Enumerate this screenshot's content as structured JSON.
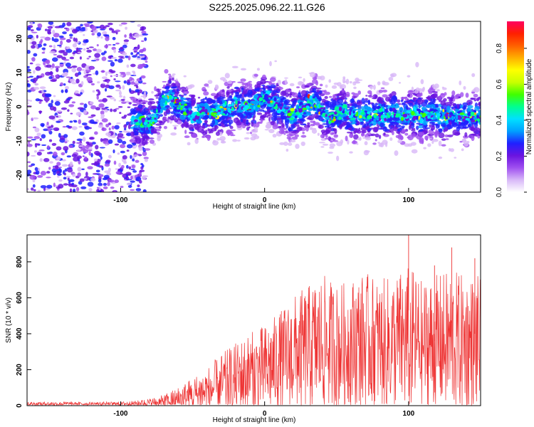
{
  "figure": {
    "title": "S225.2025.096.22.11.G26"
  },
  "chart_data": [
    {
      "type": "heatmap",
      "title": "S225.2025.096.22.11.G26",
      "xlabel": "Height of straight line (km)",
      "ylabel": "Frequency (Hz)",
      "xlim": [
        -165,
        150
      ],
      "ylim": [
        -25,
        25
      ],
      "xticks": [
        -100,
        0,
        100
      ],
      "yticks": [
        -20,
        -10,
        0,
        10,
        20
      ],
      "grid": false,
      "colorbar": {
        "label": "Normalized spectral amplitude",
        "range": [
          0,
          0.95
        ],
        "ticks": [
          0.0,
          0.2,
          0.4,
          0.6,
          0.8
        ],
        "colors": [
          "#ffffff",
          "#d8b8f8",
          "#a050f0",
          "#6a14e0",
          "#2020ff",
          "#00a0ff",
          "#00e0ff",
          "#00ff90",
          "#40ff00",
          "#c8ff00",
          "#ffff00",
          "#ffb000",
          "#ff6000",
          "#ff2000",
          "#ff0060"
        ]
      },
      "signal_trace": {
        "x": [
          -88,
          -80,
          -75,
          -70,
          -66,
          -62,
          -58,
          -54,
          -50,
          -46,
          -42,
          -38,
          -34,
          -30,
          -26,
          -22,
          -18,
          -14,
          -10,
          -6,
          -2,
          2,
          6,
          10,
          14,
          18,
          22,
          26,
          30,
          34,
          38,
          42,
          46,
          50,
          55,
          60,
          65,
          70,
          75,
          80,
          85,
          90,
          95,
          100,
          105,
          110,
          115,
          120,
          125,
          130,
          135,
          140,
          145,
          150
        ],
        "y": [
          -4,
          -5,
          -2,
          1,
          3,
          1,
          0,
          -1,
          -3,
          -2,
          -1,
          -2,
          -2,
          -1,
          -1,
          0,
          1,
          0,
          0,
          1,
          2,
          3,
          1,
          0,
          -1,
          -2,
          -2,
          -1,
          0,
          2,
          0,
          -2,
          -3,
          -2,
          -1,
          -3,
          -2,
          -2,
          -3,
          -2,
          -3,
          -1,
          -3,
          -2,
          -2,
          -3,
          -2,
          -2,
          -3,
          -3,
          -3,
          -3,
          -3,
          -3
        ]
      }
    },
    {
      "type": "line",
      "xlabel": "Height of straight line (km)",
      "ylabel": "SNR (10 * v/v)",
      "xlim": [
        -165,
        150
      ],
      "ylim": [
        0,
        950
      ],
      "xticks": [
        -100,
        0,
        100
      ],
      "yticks": [
        0,
        200,
        400,
        600,
        800
      ],
      "grid": false,
      "color": "#ee3333",
      "envelope": {
        "x": [
          -165,
          -140,
          -120,
          -100,
          -90,
          -80,
          -70,
          -60,
          -50,
          -40,
          -30,
          -20,
          -10,
          0,
          10,
          20,
          30,
          40,
          50,
          60,
          70,
          80,
          90,
          100,
          110,
          120,
          130,
          140,
          150
        ],
        "baseline": [
          10,
          10,
          10,
          10,
          12,
          15,
          20,
          35,
          60,
          80,
          120,
          150,
          180,
          200,
          240,
          290,
          320,
          350,
          330,
          350,
          360,
          340,
          350,
          360,
          340,
          350,
          360,
          340,
          350
        ],
        "amplitude": [
          10,
          12,
          10,
          12,
          15,
          25,
          40,
          70,
          100,
          130,
          170,
          200,
          230,
          250,
          280,
          320,
          350,
          380,
          350,
          360,
          380,
          360,
          380,
          420,
          360,
          380,
          400,
          380,
          380
        ]
      },
      "peaks": [
        [
          25,
          520
        ],
        [
          33,
          470
        ],
        [
          100,
          950
        ],
        [
          118,
          780
        ],
        [
          130,
          880
        ],
        [
          146,
          820
        ]
      ]
    }
  ]
}
